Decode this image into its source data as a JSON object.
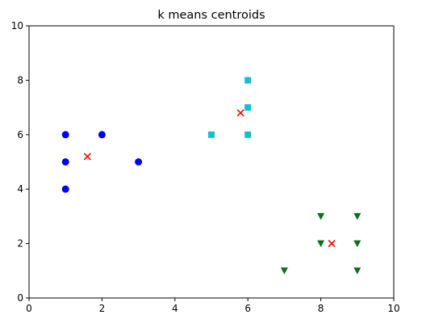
{
  "chart_data": {
    "type": "scatter",
    "title": "k means centroids",
    "xlabel": "",
    "ylabel": "",
    "xlim": [
      0,
      10
    ],
    "ylim": [
      0,
      10
    ],
    "xticks": [
      0,
      2,
      4,
      6,
      8,
      10
    ],
    "yticks": [
      0,
      2,
      4,
      6,
      8,
      10
    ],
    "grid": false,
    "series": [
      {
        "marker": "circle",
        "color": "#0000ff",
        "points": [
          [
            1,
            6
          ],
          [
            1,
            5
          ],
          [
            1,
            4
          ],
          [
            2,
            6
          ],
          [
            3,
            5
          ]
        ]
      },
      {
        "marker": "square",
        "color": "#17becf",
        "points": [
          [
            6,
            8
          ],
          [
            6,
            7
          ],
          [
            5,
            6
          ],
          [
            6,
            6
          ]
        ]
      },
      {
        "marker": "triangle-down",
        "color": "#0a6e1e",
        "points": [
          [
            8,
            3
          ],
          [
            9,
            3
          ],
          [
            8,
            2
          ],
          [
            9,
            2
          ],
          [
            7,
            1
          ],
          [
            9,
            1
          ]
        ]
      },
      {
        "marker": "x",
        "color": "#ff0000",
        "points": [
          [
            1.6,
            5.2
          ],
          [
            5.8,
            6.8
          ],
          [
            8.3,
            2.0
          ]
        ]
      }
    ]
  }
}
